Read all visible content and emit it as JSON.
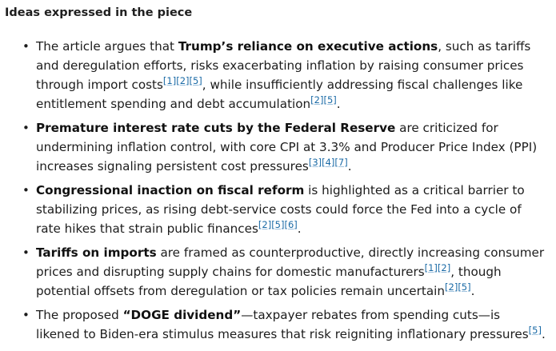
{
  "heading": "Ideas expressed in the piece",
  "items": [
    {
      "t0": "The article argues that ",
      "b0": "Trump’s reliance on executive actions",
      "t1": ", such as tariffs and deregulation efforts, risks exacerbating inflation by raising consumer prices through import costs",
      "c0": [
        "[1]",
        "[2]",
        "[5]"
      ],
      "t2": ", while insufficiently addressing fiscal challenges like entitlement spending and debt accumulation",
      "c1": [
        "[2]",
        "[5]"
      ],
      "t3": "."
    },
    {
      "b0": "Premature interest rate cuts by the Federal Reserve",
      "t1": " are criticized for undermining inflation control, with core CPI at 3.3% and Producer Price Index (PPI) increases signaling persistent cost pressures",
      "c0": [
        "[3]",
        "[4]",
        "[7]"
      ],
      "t2": "."
    },
    {
      "b0": "Congressional inaction on fiscal reform",
      "t1": " is highlighted as a critical barrier to stabilizing prices, as rising debt-service costs could force the Fed into a cycle of rate hikes that strain public finances",
      "c0": [
        "[2]",
        "[5]",
        "[6]"
      ],
      "t2": "."
    },
    {
      "b0": "Tariffs on imports",
      "t1": " are framed as counterproductive, directly increasing consumer prices and disrupting supply chains for domestic manufacturers",
      "c0": [
        "[1]",
        "[2]"
      ],
      "t2": ", though potential offsets from deregulation or tax policies remain uncertain",
      "c1": [
        "[2]",
        "[5]"
      ],
      "t3": "."
    },
    {
      "t0": "The proposed ",
      "b0": "“DOGE dividend”",
      "t1": "—taxpayer rebates from spending cuts—is likened to Biden-era stimulus measures that risk reigniting inflationary pressures",
      "c0": [
        "[5]"
      ],
      "t2": "."
    }
  ]
}
